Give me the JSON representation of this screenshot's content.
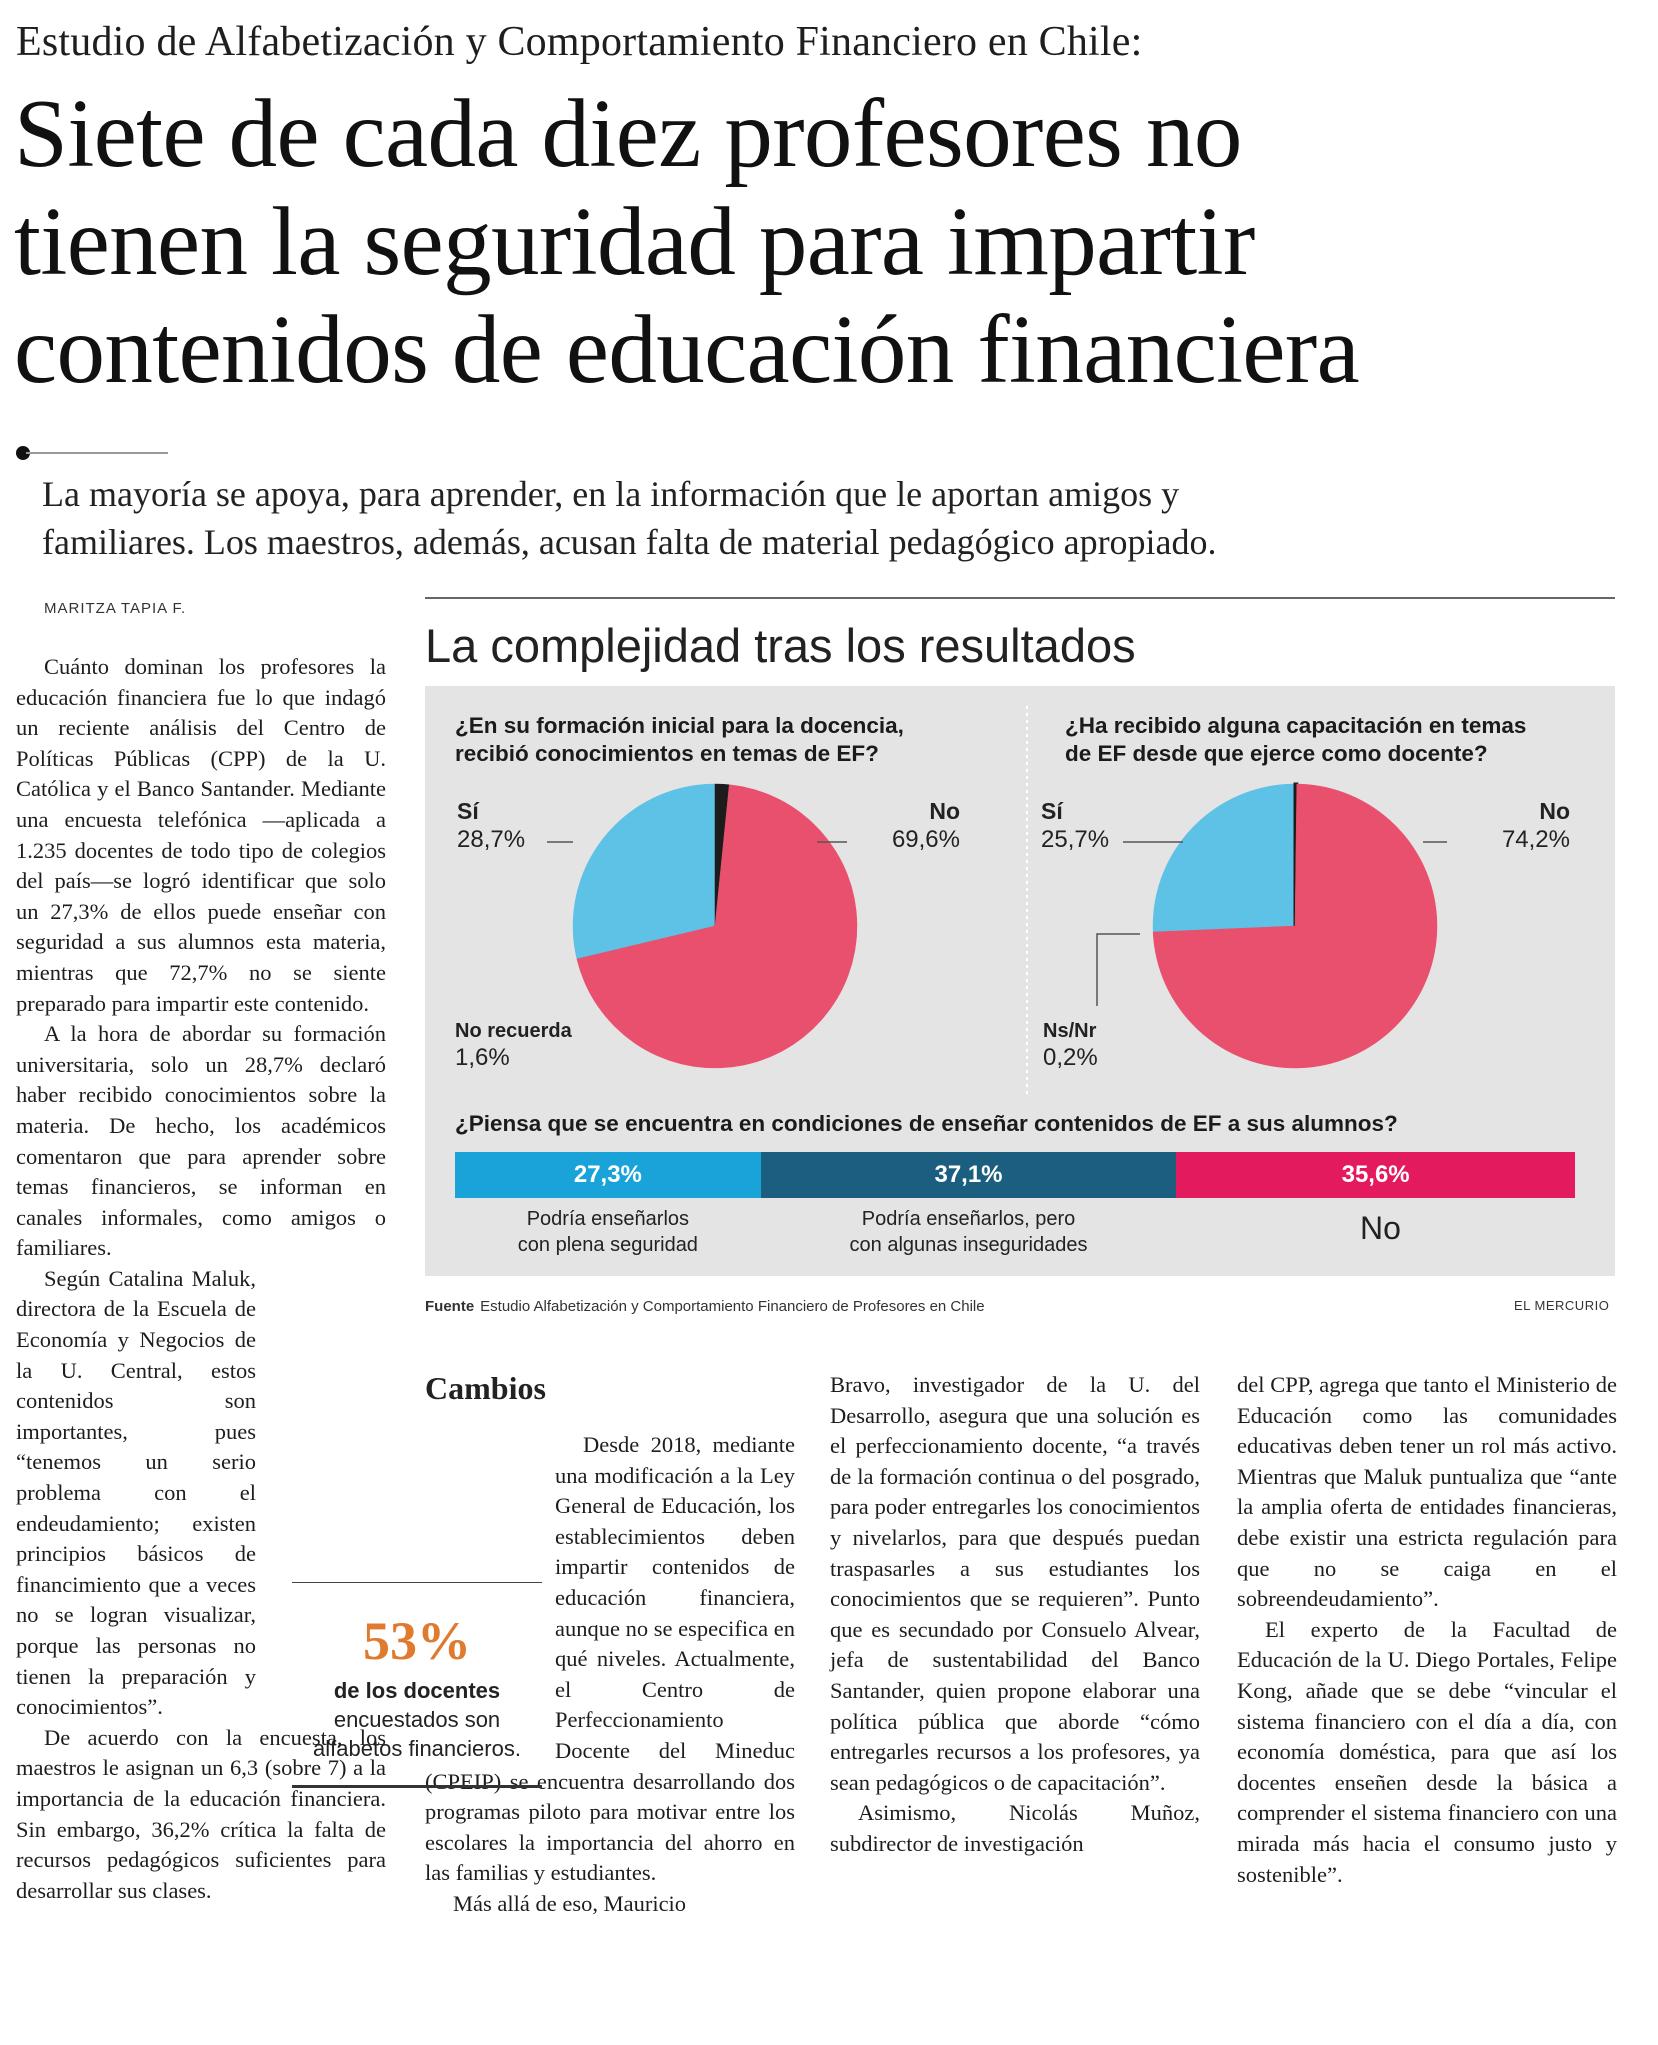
{
  "header": {
    "kicker": "Estudio de Alfabetización y Comportamiento Financiero en Chile:",
    "headline": [
      "Siete de cada diez profesores no",
      "tienen la seguridad para impartir",
      "contenidos de educación financiera"
    ],
    "deck": [
      "La mayoría se apoya, para aprender, en la información que le aportan amigos y",
      "familiares. Los maestros, además, acusan falta de material pedagógico apropiado."
    ],
    "byline": "MARITZA TAPIA F."
  },
  "infographic": {
    "title": "La complejidad tras los resultados",
    "source_label": "Fuente",
    "source_text": "Estudio Alfabetización y Comportamiento Financiero de Profesores en Chile",
    "brand": "EL MERCURIO",
    "no_big_label": "No"
  },
  "chart_data": [
    {
      "type": "pie",
      "title": "¿En su formación inicial para la docencia, recibió conocimientos en temas de EF?",
      "title_lines": [
        "¿En su formación inicial para la docencia,",
        "recibió conocimientos en temas de EF?"
      ],
      "slices": [
        {
          "label": "Sí",
          "value": 28.7,
          "display": "28,7%",
          "color": "#5ec1e6"
        },
        {
          "label": "No",
          "value": 69.6,
          "display": "69,6%",
          "color": "#e8506d"
        },
        {
          "label": "No recuerda",
          "value": 1.6,
          "display": "1,6%",
          "color": "#1c1c1c"
        }
      ]
    },
    {
      "type": "pie",
      "title": "¿Ha recibido alguna capacitación en temas de EF desde que ejerce como docente?",
      "title_lines": [
        "¿Ha recibido alguna capacitación en temas",
        "de EF desde que ejerce como docente?"
      ],
      "slices": [
        {
          "label": "Sí",
          "value": 25.7,
          "display": "25,7%",
          "color": "#5ec1e6"
        },
        {
          "label": "No",
          "value": 74.2,
          "display": "74,2%",
          "color": "#e8506d"
        },
        {
          "label": "Ns/Nr",
          "value": 0.2,
          "display": "0,2%",
          "color": "#1c1c1c"
        }
      ]
    },
    {
      "type": "bar",
      "orientation": "horizontal-stacked",
      "title": "¿Piensa que se encuentra en condiciones de enseñar contenidos de EF a sus alumnos?",
      "segments": [
        {
          "label": "Podría enseñarlos con plena seguridad",
          "label_lines": [
            "Podría enseñarlos",
            "con plena seguridad"
          ],
          "value": 27.3,
          "display": "27,3%",
          "color": "#1aa3d9"
        },
        {
          "label": "Podría enseñarlos, pero con algunas inseguridades",
          "label_lines": [
            "Podría enseñarlos, pero",
            "con algunas inseguridades"
          ],
          "value": 37.1,
          "display": "37,1%",
          "color": "#1b5e80"
        },
        {
          "label": "No",
          "label_lines": [],
          "value": 35.6,
          "display": "35,6%",
          "color": "#e31a5e"
        }
      ]
    }
  ],
  "pullquote": {
    "number": "53%",
    "text_bold": "de los docentes",
    "text_rest": " encuestados son alfabetos financieros."
  },
  "article": {
    "col1": [
      "Cuánto dominan los profesores la educación financiera fue lo que indagó un reciente análisis del Centro de Políticas Públicas (CPP) de la U. Católica y el Banco Santander. Mediante una encuesta telefónica —aplicada a 1.235 docentes de todo tipo de colegios del país—se logró identificar que solo un 27,3% de ellos puede enseñar con seguridad a sus alumnos esta materia, mientras que 72,7% no se siente preparado para impartir este contenido.",
      "A la hora de abordar su formación universitaria, solo un 28,7% declaró haber recibido conocimientos sobre la materia. De hecho, los académicos comentaron que para aprender sobre temas financieros, se informan en canales informales, como amigos o familiares.",
      "Según Catalina Maluk, directora de la Escuela de Economía y Negocios de la U. Central, estos contenidos son importantes, pues “tenemos un serio problema con el endeudamiento; existen principios básicos de financimiento que a veces no se logran visualizar, porque las personas no tienen la preparación y conocimientos”.",
      "De acuerdo con la encuesta, los maestros le asignan un 6,3 (sobre 7) a la importancia de la educación financiera. Sin embargo, 36,2% crítica la falta de recursos pedagógicos suficientes para desarrollar sus clases."
    ],
    "subhead": "Cambios",
    "col2": [
      "Desde 2018, mediante una modificación a la Ley General de Educación, los establecimientos deben impartir contenidos de educación financiera, aunque no se especifica en qué niveles. Actualmente, el Centro de Perfeccionamiento Docente del Mineduc (CPEIP) se encuentra desarrollando dos programas piloto para motivar entre los escolares la importancia del ahorro en las familias y estudiantes.",
      "Más allá de eso, Mauricio"
    ],
    "col3": [
      "Bravo, investigador de la U. del Desarrollo, asegura que una solución es el perfeccionamiento docente, “a través de la formación continua o del posgrado, para poder entregarles los conocimientos y nivelarlos, para que después puedan traspasarles a sus estudiantes los conocimientos que se requieren”. Punto que es secundado por Consuelo Alvear, jefa de sustentabilidad del Banco Santander, quien propone elaborar una política pública que aborde “cómo entregarles recursos a los profesores, ya sean pedagógicos o de capacitación”.",
      "Asimismo, Nicolás Muñoz, subdirector de investigación"
    ],
    "col4": [
      "del CPP, agrega que tanto el Ministerio de Educación como las comunidades educativas deben tener un rol más activo. Mientras que Maluk puntualiza que “ante la amplia oferta de entidades financieras, debe existir una estricta regulación para que no se caiga en el sobreendeudamiento”.",
      "El experto de la Facultad de Educación de la U. Diego Portales, Felipe Kong, añade que se debe “vincular el sistema financiero con el día a día, con economía doméstica, para que así los docentes enseñen desde la básica a comprender el sistema financiero con una mirada más hacia el consumo justo y sostenible”."
    ]
  }
}
